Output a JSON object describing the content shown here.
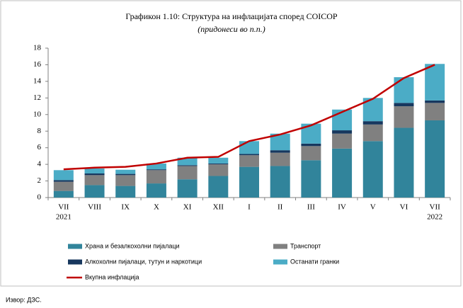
{
  "chart_data": {
    "type": "stacked-bar-line",
    "title": "Графикон 1.10: Структура на инфлацијата според COICOP",
    "subtitle": "(придонеси во п.п.)",
    "categories": [
      "VII",
      "VIII",
      "IX",
      "X",
      "XI",
      "XII",
      "I",
      "II",
      "III",
      "IV",
      "V",
      "VI",
      "VII"
    ],
    "years": [
      "2021",
      null,
      null,
      null,
      null,
      null,
      null,
      null,
      null,
      null,
      null,
      null,
      "2022"
    ],
    "series": [
      {
        "name": "Храна и безалкохолни пијалаци",
        "color": "#31849b",
        "values": [
          0.8,
          1.5,
          1.4,
          1.7,
          2.2,
          2.6,
          3.7,
          3.8,
          4.5,
          5.9,
          6.8,
          8.4,
          9.3
        ]
      },
      {
        "name": "Транспорт",
        "color": "#808080",
        "values": [
          1.1,
          1.2,
          1.3,
          1.6,
          1.6,
          1.4,
          1.4,
          1.6,
          1.7,
          1.8,
          2.0,
          2.6,
          2.1
        ]
      },
      {
        "name": "Алкохолни пијалаци, тутун и наркотици",
        "color": "#17375e",
        "values": [
          0.2,
          0.2,
          0.15,
          0.1,
          0.1,
          0.1,
          0.15,
          0.3,
          0.3,
          0.4,
          0.4,
          0.4,
          0.3
        ]
      },
      {
        "name": "Останати гранки",
        "color": "#4bacc6",
        "values": [
          1.2,
          0.6,
          0.5,
          0.7,
          0.9,
          0.7,
          1.55,
          2.0,
          2.4,
          2.5,
          2.8,
          3.1,
          4.4
        ]
      }
    ],
    "line": {
      "name": "Вкупна инфлација",
      "color": "#c00000",
      "values": [
        3.4,
        3.6,
        3.7,
        4.1,
        4.8,
        4.9,
        6.8,
        7.6,
        8.7,
        10.3,
        11.9,
        14.4,
        16.0
      ]
    },
    "ylim": [
      0,
      18
    ],
    "yticks": [
      0,
      2,
      4,
      6,
      8,
      10,
      12,
      14,
      16,
      18
    ],
    "source": "Извор: ДЗС."
  }
}
